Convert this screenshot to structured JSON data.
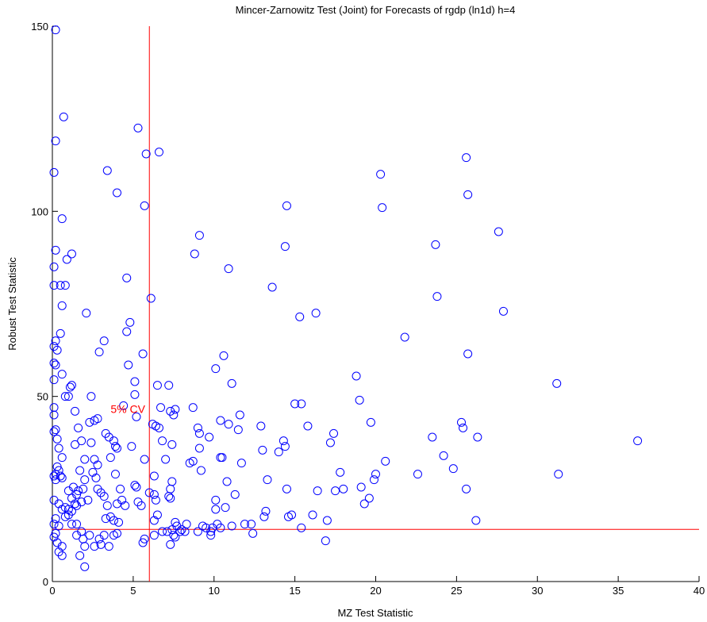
{
  "chart_data": {
    "type": "scatter",
    "title": "Mincer-Zarnowitz Test (Joint) for Forecasts of rgdp (ln1d) h=4",
    "xlabel": "MZ Test Statistic",
    "ylabel": "Robust Test Statistic",
    "xlim": [
      0,
      40
    ],
    "ylim": [
      0,
      150
    ],
    "xticks": [
      0,
      5,
      10,
      15,
      20,
      25,
      30,
      35,
      40
    ],
    "yticks": [
      0,
      50,
      100,
      150
    ],
    "grid": false,
    "marker": "circle-open",
    "marker_color": "#0000ff",
    "reference_lines": {
      "color": "#ff0000",
      "x_cv": 6.0,
      "y_cv": 14.1,
      "label": "5% CV",
      "label_position": [
        3.6,
        45.5
      ]
    },
    "points": [
      [
        0.2,
        149
      ],
      [
        0.7,
        125.5
      ],
      [
        0.2,
        119
      ],
      [
        0.1,
        110.5
      ],
      [
        0.6,
        98
      ],
      [
        0.2,
        89.5
      ],
      [
        0.9,
        87
      ],
      [
        1.2,
        88.5
      ],
      [
        0.1,
        85
      ],
      [
        0.1,
        80
      ],
      [
        0.5,
        80
      ],
      [
        0.8,
        80
      ],
      [
        0.6,
        74.5
      ],
      [
        0.5,
        67
      ],
      [
        0.2,
        65
      ],
      [
        0.1,
        63.5
      ],
      [
        0.3,
        62.5
      ],
      [
        0.1,
        59
      ],
      [
        0.2,
        58.5
      ],
      [
        0.6,
        56
      ],
      [
        0.1,
        54.5
      ],
      [
        0.8,
        50
      ],
      [
        1.0,
        50
      ],
      [
        1.1,
        52.5
      ],
      [
        1.2,
        53
      ],
      [
        0.1,
        47
      ],
      [
        0.1,
        45
      ],
      [
        0.2,
        41
      ],
      [
        0.1,
        40.5
      ],
      [
        0.3,
        38.5
      ],
      [
        0.4,
        36
      ],
      [
        0.6,
        33.5
      ],
      [
        0.3,
        31
      ],
      [
        0.4,
        30
      ],
      [
        0.2,
        29
      ],
      [
        0.1,
        28.5
      ],
      [
        0.2,
        27.5
      ],
      [
        0.5,
        28.5
      ],
      [
        0.6,
        28
      ],
      [
        0.1,
        22
      ],
      [
        0.4,
        21
      ],
      [
        0.6,
        19.5
      ],
      [
        0.8,
        20
      ],
      [
        1.0,
        19.5
      ],
      [
        0.2,
        17
      ],
      [
        0.1,
        15.5
      ],
      [
        0.4,
        15
      ],
      [
        0.2,
        13
      ],
      [
        0.1,
        12
      ],
      [
        0.3,
        10.5
      ],
      [
        0.6,
        9.5
      ],
      [
        0.4,
        8
      ],
      [
        0.6,
        7
      ],
      [
        0.8,
        17.5
      ],
      [
        1.0,
        18
      ],
      [
        1.2,
        22.5
      ],
      [
        1.4,
        21
      ],
      [
        1.5,
        23.5
      ],
      [
        1.6,
        24.5
      ],
      [
        1.3,
        25.5
      ],
      [
        1.0,
        24.5
      ],
      [
        1.2,
        19
      ],
      [
        1.5,
        20.5
      ],
      [
        1.8,
        21.5
      ],
      [
        1.2,
        15.5
      ],
      [
        1.5,
        15.5
      ],
      [
        1.8,
        13.5
      ],
      [
        1.5,
        12.5
      ],
      [
        1.9,
        11.5
      ],
      [
        1.7,
        7
      ],
      [
        2.0,
        9.5
      ],
      [
        2.0,
        4
      ],
      [
        1.4,
        37
      ],
      [
        1.4,
        46
      ],
      [
        1.6,
        41.5
      ],
      [
        1.8,
        38
      ],
      [
        2.0,
        33
      ],
      [
        1.7,
        30
      ],
      [
        2.0,
        27.5
      ],
      [
        1.9,
        25
      ],
      [
        2.2,
        22
      ],
      [
        2.3,
        12.5
      ],
      [
        2.6,
        9.5
      ],
      [
        2.9,
        11.5
      ],
      [
        3.0,
        10
      ],
      [
        3.2,
        12.5
      ],
      [
        3.5,
        9.5
      ],
      [
        2.1,
        72.5
      ],
      [
        2.4,
        50
      ],
      [
        2.3,
        43
      ],
      [
        2.6,
        43.5
      ],
      [
        2.8,
        44
      ],
      [
        2.4,
        37.5
      ],
      [
        2.6,
        33
      ],
      [
        2.8,
        31.5
      ],
      [
        2.5,
        29.5
      ],
      [
        2.7,
        28
      ],
      [
        2.8,
        25
      ],
      [
        3.0,
        24
      ],
      [
        3.2,
        23
      ],
      [
        3.4,
        20.5
      ],
      [
        3.6,
        17.5
      ],
      [
        3.8,
        16.5
      ],
      [
        3.3,
        17
      ],
      [
        2.9,
        62
      ],
      [
        3.2,
        65
      ],
      [
        3.3,
        40
      ],
      [
        3.5,
        39
      ],
      [
        3.8,
        38
      ],
      [
        3.9,
        36.5
      ],
      [
        3.6,
        33.5
      ],
      [
        3.4,
        111
      ],
      [
        4.0,
        105
      ],
      [
        4.6,
        82
      ],
      [
        4.8,
        70
      ],
      [
        4.6,
        67.5
      ],
      [
        4.7,
        58.5
      ],
      [
        4.4,
        47.5
      ],
      [
        4.0,
        36
      ],
      [
        3.9,
        29
      ],
      [
        4.2,
        25
      ],
      [
        4.0,
        21
      ],
      [
        4.3,
        22
      ],
      [
        4.5,
        20.5
      ],
      [
        4.1,
        16
      ],
      [
        4.0,
        13
      ],
      [
        3.8,
        12.5
      ],
      [
        5.3,
        122.5
      ],
      [
        5.1,
        54
      ],
      [
        5.1,
        50.5
      ],
      [
        5.2,
        44.5
      ],
      [
        4.9,
        36.5
      ],
      [
        5.6,
        61.5
      ],
      [
        5.1,
        26
      ],
      [
        5.2,
        25.5
      ],
      [
        5.3,
        21.5
      ],
      [
        5.5,
        20.5
      ],
      [
        5.6,
        10.5
      ],
      [
        5.7,
        11.5
      ],
      [
        5.8,
        115.5
      ],
      [
        5.7,
        101.5
      ],
      [
        5.7,
        33
      ],
      [
        6.0,
        24
      ],
      [
        6.1,
        76.5
      ],
      [
        6.2,
        42.5
      ],
      [
        6.3,
        28.5
      ],
      [
        6.3,
        23.5
      ],
      [
        6.4,
        22
      ],
      [
        6.5,
        18
      ],
      [
        6.3,
        16.5
      ],
      [
        6.3,
        12.5
      ],
      [
        6.6,
        116
      ],
      [
        6.5,
        53
      ],
      [
        6.4,
        42
      ],
      [
        6.7,
        47
      ],
      [
        6.6,
        41.5
      ],
      [
        6.8,
        38
      ],
      [
        7.0,
        33
      ],
      [
        6.8,
        13.5
      ],
      [
        7.1,
        13.5
      ],
      [
        7.2,
        53
      ],
      [
        7.3,
        46
      ],
      [
        7.4,
        37
      ],
      [
        7.5,
        45
      ],
      [
        7.4,
        27
      ],
      [
        7.3,
        25
      ],
      [
        7.2,
        23
      ],
      [
        7.3,
        22.5
      ],
      [
        7.6,
        46.5
      ],
      [
        7.4,
        14
      ],
      [
        7.5,
        12.5
      ],
      [
        7.6,
        16
      ],
      [
        7.7,
        15
      ],
      [
        7.9,
        13.5
      ],
      [
        8.0,
        14
      ],
      [
        8.2,
        13.5
      ],
      [
        8.3,
        15.5
      ],
      [
        7.3,
        10
      ],
      [
        7.6,
        12
      ],
      [
        8.5,
        32
      ],
      [
        8.7,
        32.5
      ],
      [
        8.7,
        47
      ],
      [
        9.1,
        36
      ],
      [
        9.0,
        41.5
      ],
      [
        9.1,
        40
      ],
      [
        8.8,
        88.5
      ],
      [
        9.1,
        93.5
      ],
      [
        9.2,
        30
      ],
      [
        9.3,
        15
      ],
      [
        9.0,
        13.5
      ],
      [
        9.5,
        14.5
      ],
      [
        9.8,
        13.5
      ],
      [
        9.7,
        39
      ],
      [
        9.9,
        14.5
      ],
      [
        9.8,
        12.5
      ],
      [
        10.1,
        57.5
      ],
      [
        10.1,
        22
      ],
      [
        10.1,
        19.5
      ],
      [
        10.2,
        15.5
      ],
      [
        10.4,
        14.5
      ],
      [
        10.4,
        33.5
      ],
      [
        10.5,
        33.5
      ],
      [
        10.6,
        61
      ],
      [
        10.4,
        43.5
      ],
      [
        10.9,
        42.5
      ],
      [
        10.7,
        20
      ],
      [
        10.8,
        27
      ],
      [
        10.9,
        84.5
      ],
      [
        11.1,
        53.5
      ],
      [
        11.1,
        15
      ],
      [
        11.3,
        23.5
      ],
      [
        11.5,
        41
      ],
      [
        11.6,
        45
      ],
      [
        11.7,
        32
      ],
      [
        11.9,
        15.5
      ],
      [
        12.3,
        15.5
      ],
      [
        12.4,
        13
      ],
      [
        12.9,
        42
      ],
      [
        13.0,
        35.5
      ],
      [
        13.1,
        17.5
      ],
      [
        13.3,
        27.5
      ],
      [
        13.2,
        19
      ],
      [
        13.6,
        79.5
      ],
      [
        14.0,
        35
      ],
      [
        14.3,
        38
      ],
      [
        14.4,
        36.5
      ],
      [
        14.4,
        90.5
      ],
      [
        14.5,
        101.5
      ],
      [
        14.5,
        25
      ],
      [
        14.6,
        17.5
      ],
      [
        14.8,
        18
      ],
      [
        15.0,
        48
      ],
      [
        15.3,
        71.5
      ],
      [
        15.4,
        48
      ],
      [
        15.4,
        14.5
      ],
      [
        15.8,
        42
      ],
      [
        16.1,
        18
      ],
      [
        16.3,
        72.5
      ],
      [
        16.4,
        24.5
      ],
      [
        16.9,
        11
      ],
      [
        17.0,
        16.5
      ],
      [
        17.2,
        37.5
      ],
      [
        17.4,
        40
      ],
      [
        17.5,
        24.5
      ],
      [
        17.8,
        29.5
      ],
      [
        18.0,
        25
      ],
      [
        18.8,
        55.5
      ],
      [
        19.0,
        49
      ],
      [
        19.1,
        25.5
      ],
      [
        19.3,
        21
      ],
      [
        19.6,
        22.5
      ],
      [
        19.7,
        43
      ],
      [
        19.9,
        27.5
      ],
      [
        20.0,
        29
      ],
      [
        20.3,
        110
      ],
      [
        20.4,
        101
      ],
      [
        20.6,
        32.5
      ],
      [
        21.8,
        66
      ],
      [
        22.6,
        29
      ],
      [
        23.5,
        39
      ],
      [
        23.7,
        91
      ],
      [
        23.8,
        77
      ],
      [
        24.2,
        34
      ],
      [
        24.8,
        30.5
      ],
      [
        25.3,
        43
      ],
      [
        25.4,
        41.5
      ],
      [
        25.6,
        114.5
      ],
      [
        25.6,
        25
      ],
      [
        25.7,
        104.5
      ],
      [
        25.7,
        61.5
      ],
      [
        26.2,
        16.5
      ],
      [
        26.3,
        39
      ],
      [
        27.6,
        94.5
      ],
      [
        27.9,
        73
      ],
      [
        31.2,
        53.5
      ],
      [
        31.3,
        29
      ],
      [
        36.2,
        38
      ]
    ]
  }
}
